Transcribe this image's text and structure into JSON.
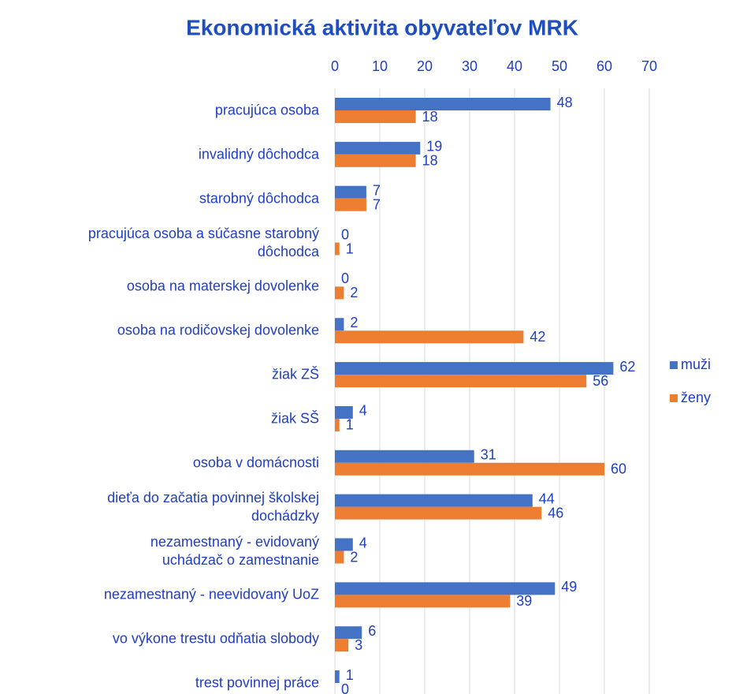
{
  "chart_data": {
    "type": "barh",
    "title": "Ekonomická aktivita obyvateľov MRK",
    "categories": [
      "pracujúca osoba",
      "invalidný dôchodca",
      "starobný dôchodca",
      "pracujúca osoba a súčasne starobný\ndôchodca",
      "osoba na materskej dovolenke",
      "osoba na rodičovskej dovolenke",
      "žiak ZŠ",
      "žiak SŠ",
      "osoba v domácnosti",
      "dieťa do začatia povinnej školskej\ndochádzky",
      "nezamestnaný - evidovaný\nuchádzač o zamestnanie",
      "nezamestnaný - neevidovaný UoZ",
      "vo výkone trestu odňatia slobody",
      "trest povinnej práce"
    ],
    "series": [
      {
        "name": "muži",
        "color": "#4472c4",
        "values": [
          48,
          19,
          7,
          0,
          0,
          2,
          62,
          4,
          31,
          44,
          4,
          49,
          6,
          1
        ]
      },
      {
        "name": "ženy",
        "color": "#ed7d31",
        "values": [
          18,
          18,
          7,
          1,
          2,
          42,
          56,
          1,
          60,
          46,
          2,
          39,
          3,
          0
        ]
      }
    ],
    "xlim": [
      0,
      70
    ],
    "xticks": [
      0,
      10,
      20,
      30,
      40,
      50,
      60,
      70
    ],
    "grid": true,
    "legend": "right"
  }
}
